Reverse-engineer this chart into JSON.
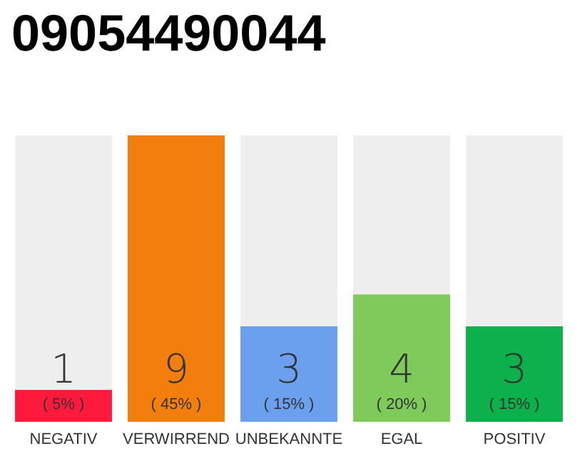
{
  "chart_data": {
    "type": "bar",
    "title": "09054490044",
    "categories": [
      "NEGATIV",
      "VERWIRREND",
      "UNBEKANNTE",
      "EGAL",
      "POSITIV"
    ],
    "values": [
      1,
      9,
      3,
      4,
      3
    ],
    "colors": [
      "#ff1a3c",
      "#f27f0c",
      "#6aa0ee",
      "#7ecb5b",
      "#0db14b"
    ],
    "value_labels": [
      "1",
      "9",
      "3",
      "4",
      "3"
    ],
    "annotations": [
      "( 5% )",
      "( 45% )",
      "( 15% )",
      "( 20% )",
      "( 15% )"
    ]
  }
}
